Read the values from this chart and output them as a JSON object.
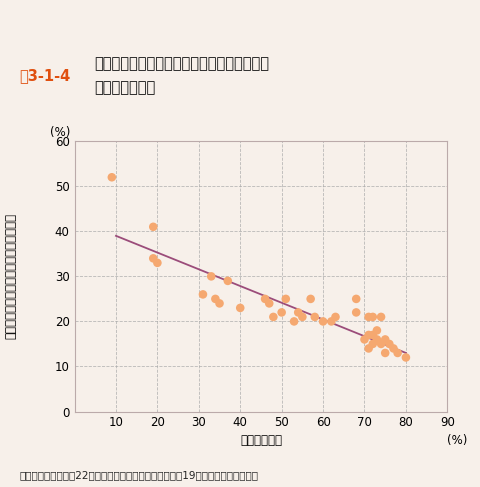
{
  "title_label": "図3-1-4",
  "title_main": "自動車依存度と中心市街地の売上比率の関係",
  "title_sub": "（都道府県別）",
  "xlabel": "自動車依存度",
  "ylabel_lines": [
    "全",
    "体",
    "の",
    "売",
    "上",
    "げ",
    "に",
    "対",
    "す",
    "る",
    "中",
    "心",
    "市",
    "街",
    "地",
    "の",
    "比",
    "率"
  ],
  "ylabel_unit": "(%)",
  "xlabel_unit": "(%)",
  "source_text": "資料：総務省「平成22年国勢調査」、経済産業省「平成19年商業統計」より作成",
  "xlim": [
    0,
    90
  ],
  "ylim": [
    0,
    60
  ],
  "xticks": [
    0,
    10,
    20,
    30,
    40,
    50,
    60,
    70,
    80,
    90
  ],
  "yticks": [
    0,
    10,
    20,
    30,
    40,
    50,
    60
  ],
  "scatter_x": [
    9,
    19,
    19,
    20,
    31,
    33,
    34,
    35,
    37,
    40,
    46,
    47,
    48,
    50,
    51,
    53,
    54,
    55,
    57,
    58,
    60,
    62,
    63,
    68,
    68,
    70,
    71,
    71,
    71,
    72,
    72,
    72,
    73,
    73,
    74,
    74,
    75,
    75,
    76,
    77,
    78,
    80
  ],
  "scatter_y": [
    52,
    41,
    34,
    33,
    26,
    30,
    25,
    24,
    29,
    23,
    25,
    24,
    21,
    22,
    25,
    20,
    22,
    21,
    25,
    21,
    20,
    20,
    21,
    22,
    25,
    16,
    21,
    17,
    14,
    17,
    21,
    15,
    18,
    16,
    21,
    15,
    16,
    13,
    15,
    14,
    13,
    12
  ],
  "scatter_color": "#F5A870",
  "scatter_size": 38,
  "trendline_color": "#9B4C7A",
  "trendline_x": [
    10,
    80
  ],
  "trendline_y": [
    39,
    13
  ],
  "background_color": "#F7F0EA",
  "plot_bg_color": "#F7F0EA",
  "grid_color": "#AAAAAA",
  "border_color": "#BBAAAA",
  "title_label_color": "#E05010",
  "font_size_title": 10.5,
  "font_size_axis_label": 8.5,
  "font_size_ticks": 8.5,
  "font_size_source": 7.5
}
